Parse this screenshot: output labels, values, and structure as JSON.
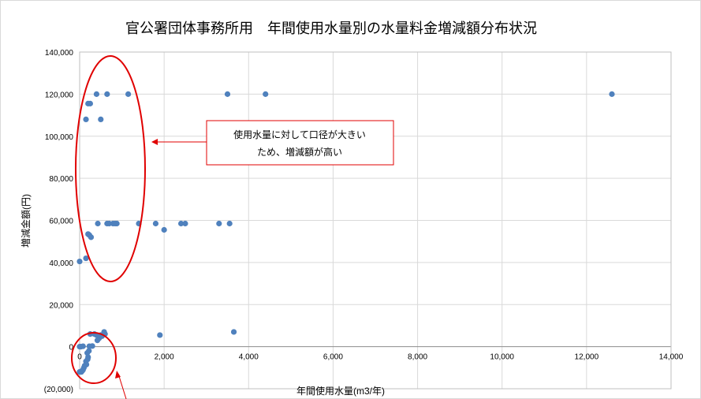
{
  "chart_data": {
    "type": "scatter",
    "title": "官公署団体事務所用　年間使用水量別の水量料金増減額分布状況",
    "xlabel": "年間使用水量(m3/年)",
    "ylabel": "増減金額(円)",
    "xlim": [
      0,
      14000
    ],
    "ylim": [
      -20000,
      140000
    ],
    "x_ticks": [
      0,
      2000,
      4000,
      6000,
      8000,
      10000,
      12000,
      14000
    ],
    "x_tick_labels": [
      "0",
      "2,000",
      "4,000",
      "6,000",
      "8,000",
      "10,000",
      "12,000",
      "14,000"
    ],
    "y_ticks": [
      -20000,
      0,
      20000,
      40000,
      60000,
      80000,
      100000,
      120000,
      140000
    ],
    "y_tick_labels": [
      "(20,000)",
      "0",
      "20,000",
      "40,000",
      "60,000",
      "80,000",
      "100,000",
      "120,000",
      "140,000"
    ],
    "grid": true,
    "colors": {
      "marker": "#4f81bd",
      "negative_label": "#c00000",
      "annotation": "#e00000",
      "grid": "#d9d9d9"
    },
    "points": [
      [
        0,
        40500
      ],
      [
        150,
        42000
      ],
      [
        200,
        53500
      ],
      [
        230,
        53000
      ],
      [
        270,
        52000
      ],
      [
        150,
        108000
      ],
      [
        500,
        108000
      ],
      [
        200,
        115500
      ],
      [
        250,
        115500
      ],
      [
        400,
        120000
      ],
      [
        650,
        120000
      ],
      [
        1150,
        120000
      ],
      [
        3500,
        120000
      ],
      [
        4400,
        120000
      ],
      [
        12600,
        120000
      ],
      [
        430,
        58500
      ],
      [
        650,
        58500
      ],
      [
        700,
        58500
      ],
      [
        790,
        58500
      ],
      [
        840,
        58500
      ],
      [
        880,
        58500
      ],
      [
        1400,
        58500
      ],
      [
        1800,
        58500
      ],
      [
        2400,
        58500
      ],
      [
        2500,
        58500
      ],
      [
        3300,
        58500
      ],
      [
        3550,
        58500
      ],
      [
        2000,
        55500
      ],
      [
        250,
        6000
      ],
      [
        350,
        6000
      ],
      [
        400,
        5500
      ],
      [
        460,
        4000
      ],
      [
        500,
        5500
      ],
      [
        580,
        7000
      ],
      [
        600,
        6000
      ],
      [
        530,
        5000
      ],
      [
        420,
        3000
      ],
      [
        1900,
        5500
      ],
      [
        3650,
        7000
      ],
      [
        0,
        0
      ],
      [
        30,
        0
      ],
      [
        80,
        200
      ],
      [
        230,
        200
      ],
      [
        300,
        300
      ],
      [
        180,
        -3000
      ],
      [
        200,
        -5000
      ],
      [
        150,
        -7000
      ],
      [
        120,
        -9000
      ],
      [
        100,
        -10000
      ],
      [
        80,
        -11000
      ],
      [
        40,
        -12000
      ],
      [
        0,
        -12000
      ],
      [
        60,
        -11500
      ],
      [
        160,
        -8500
      ],
      [
        220,
        -2000
      ],
      [
        190,
        -6000
      ]
    ]
  },
  "annotations": {
    "callout_line1": "使用水量に対して口径が大きい",
    "callout_line2": "ため、増減額が高い"
  }
}
